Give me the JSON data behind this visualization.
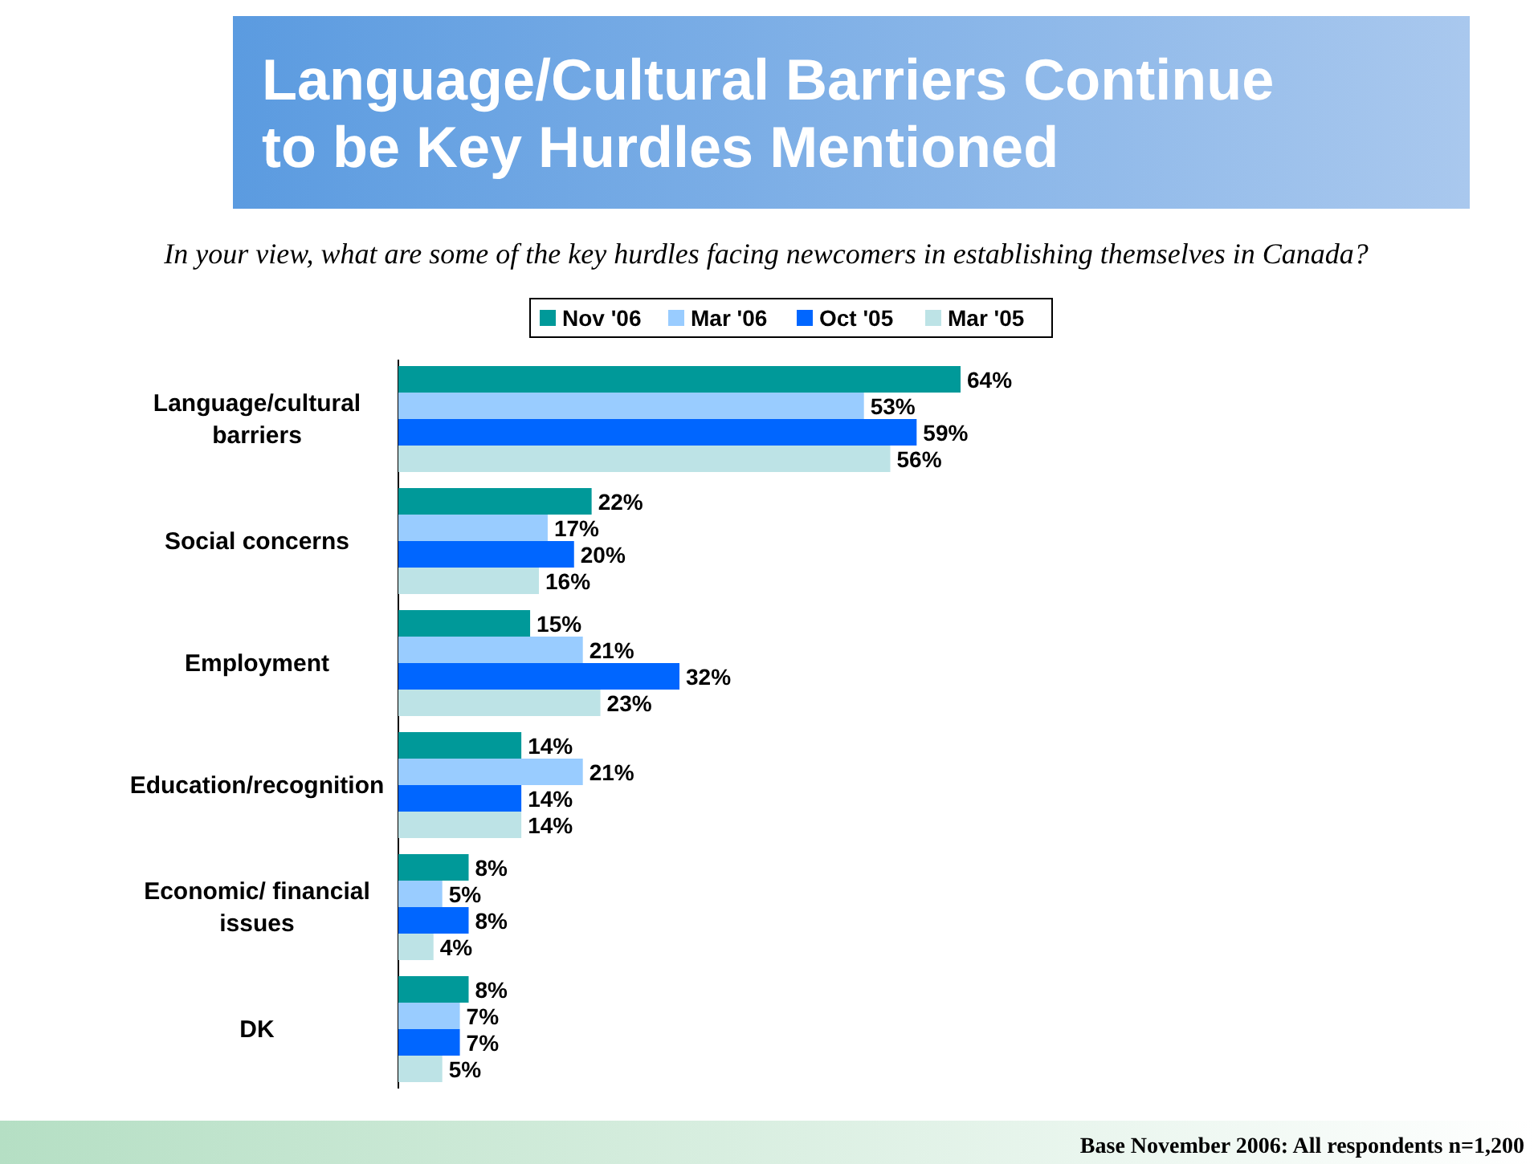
{
  "chart_data": {
    "type": "bar",
    "orientation": "horizontal",
    "title": "Language/Cultural Barriers Continue to be Key Hurdles Mentioned",
    "subtitle": "In your view, what are some of the key hurdles facing newcomers in establishing themselves in Canada?",
    "categories": [
      "Language/cultural barriers",
      "Social concerns",
      "Employment",
      "Education/recognition",
      "Economic/ financial issues",
      "DK"
    ],
    "series": [
      {
        "name": "Nov '06",
        "color": "#009999",
        "values": [
          64,
          22,
          15,
          14,
          8,
          8
        ],
        "value_labels": [
          "64%",
          "22%",
          "15%",
          "14%",
          "8%",
          "8%"
        ]
      },
      {
        "name": "Mar '06",
        "color": "#99ccff",
        "values": [
          53,
          17,
          21,
          21,
          5,
          7
        ],
        "value_labels": [
          "53%",
          "17%",
          "21%",
          "21%",
          "5%",
          "7%"
        ]
      },
      {
        "name": "Oct '05",
        "color": "#0066ff",
        "values": [
          59,
          20,
          32,
          14,
          8,
          7
        ],
        "value_labels": [
          "59%",
          "20%",
          "32%",
          "14%",
          "8%",
          "7%"
        ]
      },
      {
        "name": "Mar '05",
        "color": "#bde3e6",
        "values": [
          56,
          16,
          23,
          14,
          4,
          5
        ],
        "value_labels": [
          "56%",
          "16%",
          "23%",
          "14%",
          "4%",
          "5%"
        ]
      }
    ],
    "legend": "top",
    "annotations": [
      "Base November 2006: All respondents n=1,200"
    ]
  }
}
